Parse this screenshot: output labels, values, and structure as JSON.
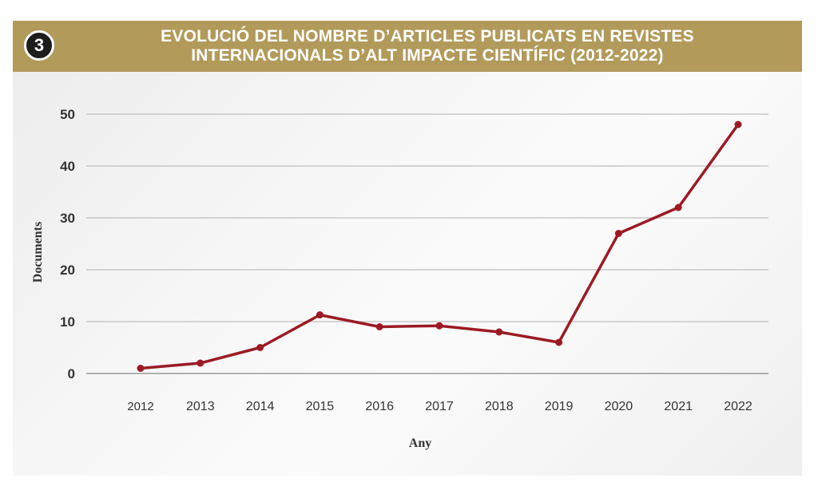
{
  "header": {
    "badge": "3",
    "title_line1": "EVOLUCIÓ DEL NOMBRE D’ARTICLES PUBLICATS EN REVISTES",
    "title_line2": "INTERNACIONALS D’ALT IMPACTE CIENTÍFIC (2012-2022)"
  },
  "colors": {
    "header": "#b29a5b",
    "line": "#9b1b24",
    "grid": "#c8c8c8"
  },
  "chart_data": {
    "type": "line",
    "title": "EVOLUCIÓ DEL NOMBRE D’ARTICLES PUBLICATS EN REVISTES INTERNACIONALS D’ALT IMPACTE CIENTÍFIC (2012-2022)",
    "xlabel": "Any",
    "ylabel": "Documents",
    "categories": [
      "2012",
      "2013",
      "2014",
      "2015",
      "2016",
      "2017",
      "2018",
      "2019",
      "2020",
      "2021",
      "2022"
    ],
    "series": [
      {
        "values": [
          1,
          2,
          5,
          11.3,
          9,
          9.2,
          8,
          6,
          27,
          32,
          48
        ]
      }
    ],
    "ylim": [
      0,
      50
    ],
    "yticks": [
      0,
      10,
      20,
      30,
      40,
      50
    ],
    "grid": true
  }
}
